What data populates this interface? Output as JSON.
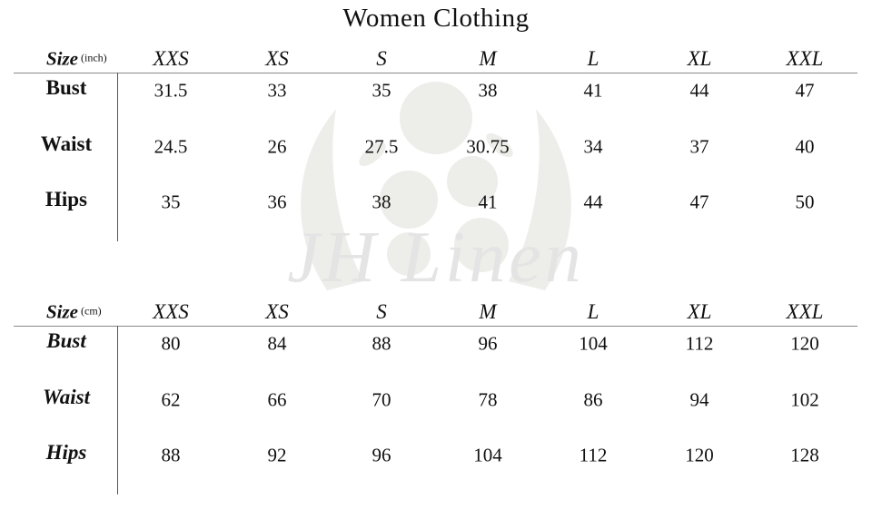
{
  "title": "Women Clothing",
  "watermark": "JH Linen",
  "sizes": [
    "XXS",
    "XS",
    "S",
    "M",
    "L",
    "XL",
    "XXL"
  ],
  "tables": [
    {
      "size_label": "Size",
      "unit": "(inch)",
      "rows": [
        {
          "label": "Bust",
          "values": [
            "31.5",
            "33",
            "35",
            "38",
            "41",
            "44",
            "47"
          ]
        },
        {
          "label": "Waist",
          "values": [
            "24.5",
            "26",
            "27.5",
            "30.75",
            "34",
            "37",
            "40"
          ]
        },
        {
          "label": "Hips",
          "values": [
            "35",
            "36",
            "38",
            "41",
            "44",
            "47",
            "50"
          ]
        }
      ]
    },
    {
      "size_label": "Size",
      "unit": "(cm)",
      "rows": [
        {
          "label": "Bust",
          "values": [
            "80",
            "84",
            "88",
            "96",
            "104",
            "112",
            "120"
          ]
        },
        {
          "label": "Waist",
          "values": [
            "62",
            "66",
            "70",
            "78",
            "86",
            "94",
            "102"
          ]
        },
        {
          "label": "Hips",
          "values": [
            "88",
            "92",
            "96",
            "104",
            "112",
            "120",
            "128"
          ]
        }
      ]
    }
  ]
}
